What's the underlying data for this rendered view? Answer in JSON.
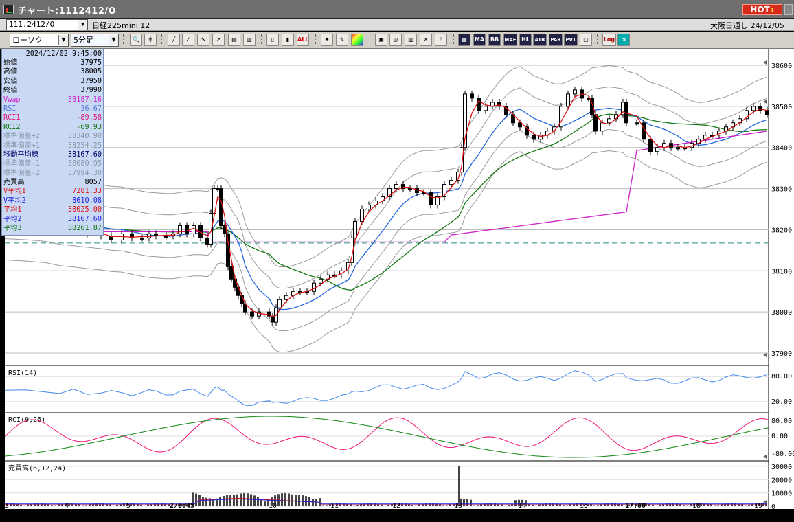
{
  "window": {
    "title": "チャート:1112412/O",
    "hot_label": "HOT",
    "hot_number": "1"
  },
  "infobar": {
    "symbol": "111.2412/O",
    "market": "日経225mini 12",
    "session": "大阪日通し 24/12/05"
  },
  "toolbar": {
    "chart_type": "ローソク",
    "interval": "5分足",
    "text_buttons": [
      "ALL",
      "MA",
      "BB",
      "MAE",
      "HL",
      "ATR",
      "PAR",
      "PVT",
      "Log"
    ]
  },
  "readout": {
    "timestamp": "2024/12/02  9:45:00",
    "rows": [
      {
        "label": "始値",
        "value": "37975",
        "color": "#000000"
      },
      {
        "label": "高値",
        "value": "38005",
        "color": "#000000"
      },
      {
        "label": "安値",
        "value": "37950",
        "color": "#000000"
      },
      {
        "label": "終値",
        "value": "37990",
        "color": "#000000"
      },
      {
        "label": "Vwap",
        "value": "38187.16",
        "color": "#cc22cc"
      },
      {
        "label": "RSI",
        "value": "36.67",
        "color": "#5577dd"
      },
      {
        "label": "RCI1",
        "value": "-89.58",
        "color": "#dd1177"
      },
      {
        "label": "RCI2",
        "value": "-69.93",
        "color": "#117711"
      },
      {
        "label": "標準偏差+2",
        "value": "38340.90",
        "color": "#8899aa"
      },
      {
        "label": "標準偏差+1",
        "value": "38254.25",
        "color": "#8899aa"
      },
      {
        "label": "移動平均線",
        "value": "38167.60",
        "color": "#000066"
      },
      {
        "label": "標準偏差-1",
        "value": "38080.95",
        "color": "#8899aa"
      },
      {
        "label": "標準偏差-2",
        "value": "37994.30",
        "color": "#8899aa"
      },
      {
        "label": "売買高",
        "value": "8057",
        "color": "#000000"
      },
      {
        "label": "V平均1",
        "value": "7281.33",
        "color": "#dd1111"
      },
      {
        "label": "V平均2",
        "value": "8610.08",
        "color": "#2222dd"
      },
      {
        "label": "平均1",
        "value": "38025.00",
        "color": "#dd1111"
      },
      {
        "label": "平均2",
        "value": "38167.60",
        "color": "#2222dd"
      },
      {
        "label": "平均3",
        "value": "38261.87",
        "color": "#117711"
      }
    ]
  },
  "price_axis": [
    "38600",
    "38500",
    "38400",
    "38300",
    "38200",
    "38100",
    "38000",
    "37900"
  ],
  "rsi_panel": {
    "title": "RSI(14)",
    "ticks": [
      "80.00",
      "20.00"
    ]
  },
  "rci_panel": {
    "title": "RCI(9,26)",
    "ticks": [
      "80.00",
      "0.00",
      "-80.00"
    ]
  },
  "volume_panel": {
    "title": "売買高(6,12,24)",
    "ticks": [
      "30000",
      "20000",
      "10000",
      "0"
    ]
  },
  "time_axis": [
    "3",
    "4",
    "5",
    "2/8:45",
    "10",
    "11",
    "12",
    "13",
    "14",
    "15",
    "17:00",
    "18",
    "19"
  ],
  "colors": {
    "ma_short": "#dd1111",
    "ma_mid": "#2266dd",
    "ma_long": "#117711",
    "vwap": "#cc22cc",
    "bands": "#999999",
    "rsi": "#4488ee",
    "rci_short": "#ee1177",
    "rci_long": "#118811",
    "volume": "#444444"
  },
  "chart_data": {
    "type": "candlestick",
    "price_range": [
      37870,
      38620
    ],
    "price_points": [
      [
        0,
        38230
      ],
      [
        30,
        38225
      ],
      [
        60,
        38215
      ],
      [
        80,
        38195
      ],
      [
        100,
        38200
      ],
      [
        120,
        38190
      ],
      [
        140,
        38185
      ],
      [
        155,
        38175
      ],
      [
        170,
        38190
      ],
      [
        185,
        38180
      ],
      [
        200,
        38180
      ],
      [
        210,
        38190
      ],
      [
        220,
        38185
      ],
      [
        235,
        38185
      ],
      [
        245,
        38190
      ],
      [
        255,
        38210
      ],
      [
        265,
        38190
      ],
      [
        275,
        38210
      ],
      [
        285,
        38180
      ],
      [
        295,
        38165
      ],
      [
        300,
        38240
      ],
      [
        305,
        38300
      ],
      [
        310,
        38300
      ],
      [
        315,
        38210
      ],
      [
        320,
        38190
      ],
      [
        325,
        38110
      ],
      [
        330,
        38080
      ],
      [
        335,
        38060
      ],
      [
        340,
        38040
      ],
      [
        345,
        38020
      ],
      [
        350,
        38000
      ],
      [
        360,
        37990
      ],
      [
        370,
        38000
      ],
      [
        385,
        37990
      ],
      [
        390,
        37975
      ],
      [
        395,
        38010
      ],
      [
        400,
        38030
      ],
      [
        410,
        38040
      ],
      [
        420,
        38050
      ],
      [
        430,
        38050
      ],
      [
        440,
        38050
      ],
      [
        450,
        38070
      ],
      [
        460,
        38080
      ],
      [
        470,
        38090
      ],
      [
        480,
        38090
      ],
      [
        490,
        38100
      ],
      [
        500,
        38120
      ],
      [
        505,
        38180
      ],
      [
        510,
        38220
      ],
      [
        520,
        38250
      ],
      [
        530,
        38260
      ],
      [
        540,
        38270
      ],
      [
        550,
        38280
      ],
      [
        560,
        38300
      ],
      [
        570,
        38310
      ],
      [
        580,
        38300
      ],
      [
        590,
        38300
      ],
      [
        600,
        38290
      ],
      [
        610,
        38290
      ],
      [
        620,
        38260
      ],
      [
        630,
        38280
      ],
      [
        640,
        38310
      ],
      [
        650,
        38320
      ],
      [
        660,
        38340
      ],
      [
        665,
        38400
      ],
      [
        670,
        38530
      ],
      [
        680,
        38520
      ],
      [
        690,
        38490
      ],
      [
        700,
        38500
      ],
      [
        710,
        38510
      ],
      [
        720,
        38500
      ],
      [
        730,
        38480
      ],
      [
        740,
        38460
      ],
      [
        750,
        38450
      ],
      [
        760,
        38430
      ],
      [
        770,
        38420
      ],
      [
        780,
        38430
      ],
      [
        790,
        38440
      ],
      [
        800,
        38450
      ],
      [
        810,
        38500
      ],
      [
        820,
        38530
      ],
      [
        830,
        38540
      ],
      [
        840,
        38520
      ],
      [
        850,
        38520
      ],
      [
        855,
        38480
      ],
      [
        860,
        38440
      ],
      [
        870,
        38460
      ],
      [
        880,
        38470
      ],
      [
        890,
        38480
      ],
      [
        900,
        38510
      ],
      [
        905,
        38460
      ],
      [
        920,
        38460
      ],
      [
        930,
        38420
      ],
      [
        940,
        38390
      ],
      [
        950,
        38400
      ],
      [
        960,
        38410
      ],
      [
        970,
        38400
      ],
      [
        980,
        38400
      ],
      [
        990,
        38400
      ],
      [
        1000,
        38410
      ],
      [
        1010,
        38420
      ],
      [
        1020,
        38430
      ],
      [
        1030,
        38430
      ],
      [
        1040,
        38440
      ],
      [
        1050,
        38450
      ],
      [
        1060,
        38460
      ],
      [
        1070,
        38470
      ],
      [
        1080,
        38490
      ],
      [
        1090,
        38500
      ],
      [
        1100,
        38490
      ],
      [
        1110,
        38480
      ]
    ],
    "volume_range": [
      0,
      32000
    ],
    "volume_spike_value": 30000
  }
}
